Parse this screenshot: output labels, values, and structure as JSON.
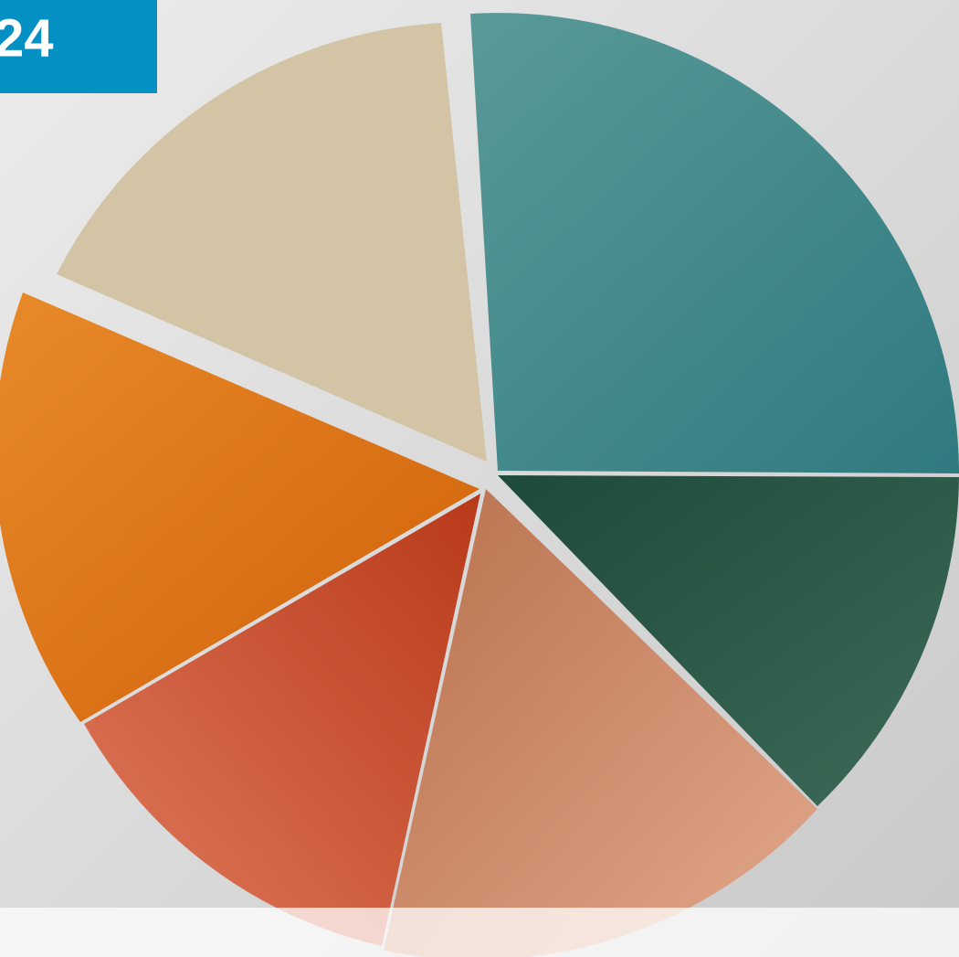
{
  "badge": {
    "text": "24"
  }
}
